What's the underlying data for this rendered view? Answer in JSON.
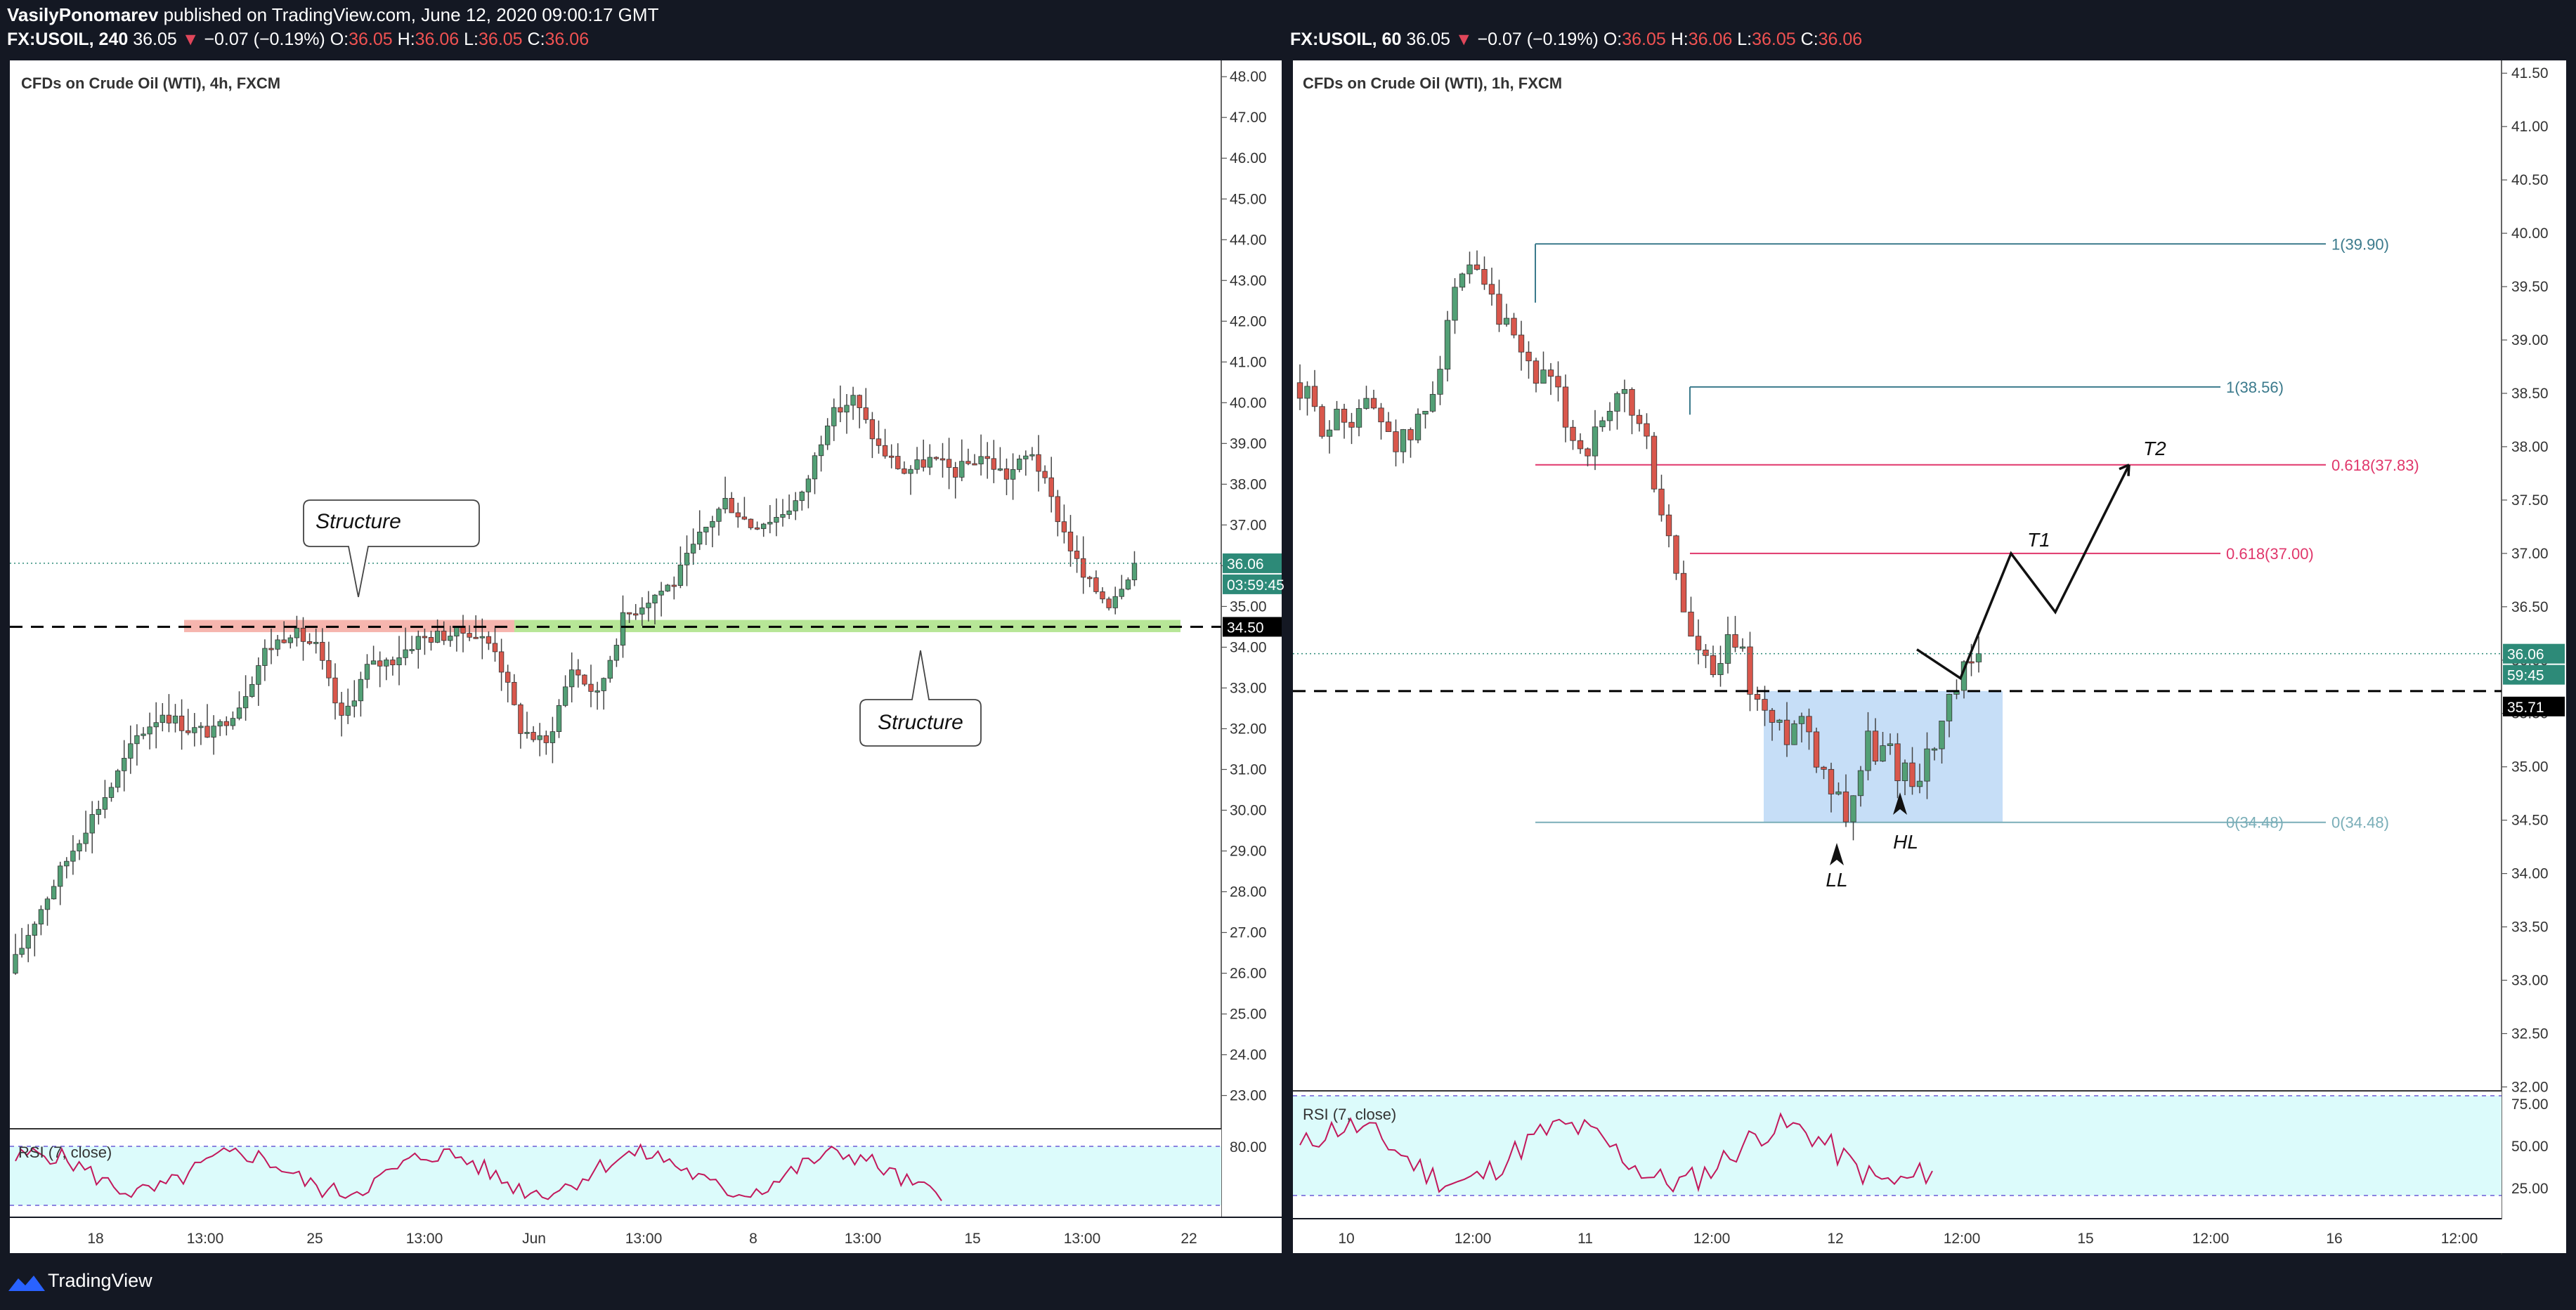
{
  "header": {
    "author": "VasilyPonomarev",
    "published": "published on TradingView.com, June 12, 2020 09:00:17 GMT"
  },
  "brand": {
    "name": "TradingView"
  },
  "colors": {
    "background": "#141823",
    "pane": "#ffffff",
    "up": "#53a076",
    "down": "#d9574c",
    "fib_blue": "#3b7a8c",
    "fib_pink": "#e0366b",
    "rsi_line": "#c2185b",
    "rsi_fill": "#dcfbfb",
    "current_price_tag": "#2d8a78",
    "support_zone": "#a5e07d",
    "resistance_zone": "#f4a29a",
    "demand_box": "#bcd8f6"
  },
  "left": {
    "ticker": "FX:USOIL, 240",
    "last": "36.05",
    "change": "−0.07 (−0.19%)",
    "ohlc": [
      {
        "k": "O:",
        "v": "36.05"
      },
      {
        "k": "H:",
        "v": "36.06"
      },
      {
        "k": "L:",
        "v": "36.05"
      },
      {
        "k": "C:",
        "v": "36.06"
      }
    ],
    "title": "CFDs on Crude Oil (WTI), 4h, FXCM",
    "price_range": [
      22.2,
      48.4
    ],
    "y_ticks": [
      "48.00",
      "47.00",
      "46.00",
      "45.00",
      "44.00",
      "43.00",
      "42.00",
      "41.00",
      "40.00",
      "39.00",
      "38.00",
      "37.00",
      "36.00",
      "35.00",
      "34.00",
      "33.00",
      "32.00",
      "31.00",
      "30.00",
      "29.00",
      "28.00",
      "27.00",
      "26.00",
      "25.00",
      "24.00",
      "23.00"
    ],
    "x_ticks": [
      "18",
      "13:00",
      "25",
      "13:00",
      "Jun",
      "13:00",
      "8",
      "13:00",
      "15",
      "13:00",
      "22"
    ],
    "price_tags": {
      "last": "36.06",
      "countdown": "03:59:45",
      "level": "34.50"
    },
    "annotations": [
      "Structure",
      "Structure"
    ],
    "rsi": {
      "label": "RSI (7, close)",
      "upper": 80,
      "lower": 20,
      "tick": "80.00"
    }
  },
  "right": {
    "ticker": "FX:USOIL, 60",
    "last": "36.05",
    "change": "−0.07 (−0.19%)",
    "ohlc": [
      {
        "k": "O:",
        "v": "36.05"
      },
      {
        "k": "H:",
        "v": "36.06"
      },
      {
        "k": "L:",
        "v": "36.05"
      },
      {
        "k": "C:",
        "v": "36.06"
      }
    ],
    "title": "CFDs on Crude Oil (WTI), 1h, FXCM",
    "price_range": [
      31.97,
      41.62
    ],
    "y_ticks": [
      "41.50",
      "41.00",
      "40.50",
      "40.00",
      "39.50",
      "39.00",
      "38.50",
      "38.00",
      "37.50",
      "37.00",
      "36.50",
      "36.00",
      "35.50",
      "35.00",
      "34.50",
      "34.00",
      "33.50",
      "33.00",
      "32.50",
      "32.00"
    ],
    "x_ticks": [
      "10",
      "12:00",
      "11",
      "12:00",
      "12",
      "12:00",
      "15",
      "12:00",
      "16",
      "12:00"
    ],
    "price_tags": {
      "last": "36.06",
      "countdown": "59:45",
      "level": "35.71"
    },
    "fib_labels": [
      "1(39.90)",
      "1(38.56)",
      "0.618(37.83)",
      "0.618(37.00)",
      "0(34.48)",
      "0(34.48)"
    ],
    "annotations": {
      "t1": "T1",
      "t2": "T2",
      "ll": "LL",
      "hl": "HL"
    },
    "rsi": {
      "label": "RSI (7, close)",
      "ticks": [
        "75.00",
        "50.00",
        "25.00"
      ],
      "upper": 80,
      "lower": 20
    }
  },
  "chart_data": [
    {
      "type": "candlestick",
      "title": "CFDs on Crude Oil (WTI), 4h, FXCM",
      "ylim": [
        22.2,
        48.4
      ],
      "x_tick_labels": [
        "18",
        "13:00",
        "25",
        "13:00",
        "Jun",
        "13:00",
        "8",
        "13:00",
        "15",
        "13:00",
        "22"
      ],
      "y_tick_labels": [
        "23.00",
        "24.00",
        "25.00",
        "26.00",
        "27.00",
        "28.00",
        "29.00",
        "30.00",
        "31.00",
        "32.00",
        "33.00",
        "34.00",
        "35.00",
        "36.00",
        "37.00",
        "38.00",
        "39.00",
        "40.00",
        "41.00",
        "42.00",
        "43.00",
        "44.00",
        "45.00",
        "46.00",
        "47.00",
        "48.00"
      ],
      "close_path": [
        26.0,
        27.3,
        28.5,
        29.6,
        30.6,
        31.8,
        32.4,
        32.0,
        31.9,
        32.6,
        33.9,
        34.4,
        34.0,
        32.2,
        33.5,
        33.7,
        34.2,
        34.3,
        34.4,
        34.0,
        32.0,
        31.6,
        33.5,
        32.8,
        34.7,
        35.2,
        35.6,
        36.7,
        37.6,
        37.0,
        37.2,
        37.7,
        39.6,
        40.1,
        38.9,
        38.3,
        38.6,
        38.3,
        38.7,
        38.2,
        38.8,
        37.2,
        35.7,
        35.1,
        36.06
      ],
      "levels": [
        34.5,
        36.06
      ]
    },
    {
      "type": "candlestick",
      "title": "CFDs on Crude Oil (WTI), 1h, FXCM",
      "ylim": [
        31.97,
        41.62
      ],
      "x_tick_labels": [
        "10",
        "12:00",
        "11",
        "12:00",
        "12",
        "12:00",
        "15",
        "12:00",
        "16",
        "12:00"
      ],
      "y_tick_labels": [
        "32.00",
        "32.50",
        "33.00",
        "33.50",
        "34.00",
        "34.50",
        "35.00",
        "35.50",
        "36.00",
        "36.50",
        "37.00",
        "37.50",
        "38.00",
        "38.50",
        "39.00",
        "39.50",
        "40.00",
        "40.50",
        "41.00",
        "41.50"
      ],
      "close_path": [
        38.6,
        38.3,
        38.2,
        38.4,
        38.3,
        38.0,
        38.3,
        39.2,
        39.6,
        39.3,
        38.9,
        38.7,
        38.4,
        38.0,
        38.1,
        38.5,
        38.0,
        37.1,
        36.2,
        35.8,
        36.2,
        35.6,
        35.3,
        35.5,
        35.0,
        34.6,
        35.2,
        35.1,
        34.9,
        35.2,
        35.7,
        36.06
      ],
      "fib_levels": [
        39.9,
        38.56,
        37.83,
        37.0,
        34.48
      ],
      "levels": [
        35.71,
        36.06
      ],
      "projection": [
        [
          35.83,
          36.06
        ],
        [
          35.77,
          37.0
        ],
        [
          36.45,
          37.83
        ]
      ]
    }
  ]
}
